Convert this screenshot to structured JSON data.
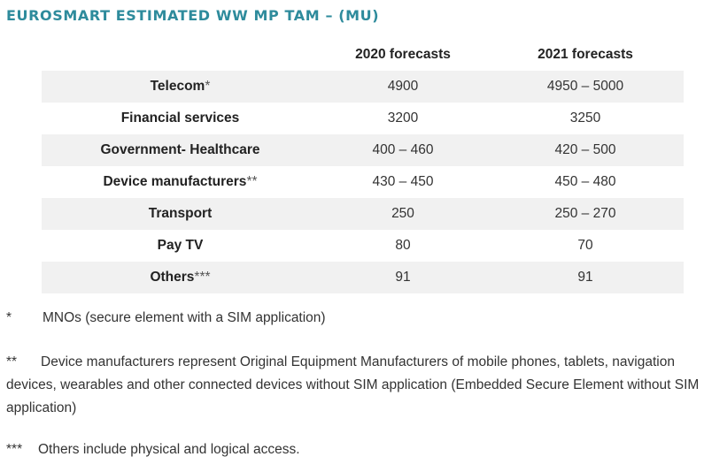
{
  "title": "EUROSMART ESTIMATED WW MP TAM – (MU)",
  "table": {
    "columns": [
      "",
      "2020 forecasts",
      "2021 forecasts"
    ],
    "rows": [
      {
        "segment": "Telecom",
        "mark": "*",
        "y2020": "4900",
        "y2021": "4950 – 5000"
      },
      {
        "segment": "Financial services",
        "mark": "",
        "y2020": "3200",
        "y2021": "3250"
      },
      {
        "segment": "Government- Healthcare",
        "mark": "",
        "y2020": "400 – 460",
        "y2021": "420 – 500"
      },
      {
        "segment": "Device manufacturers",
        "mark": "**",
        "y2020": "430 – 450",
        "y2021": "450 – 480"
      },
      {
        "segment": "Transport",
        "mark": "",
        "y2020": "250",
        "y2021": "250 – 270"
      },
      {
        "segment": "Pay TV",
        "mark": "",
        "y2020": "80",
        "y2021": "70"
      },
      {
        "segment": "Others",
        "mark": "***",
        "y2020": "91",
        "y2021": "91"
      }
    ]
  },
  "footnotes": [
    {
      "symbol": "*",
      "text": "MNOs (secure element with a SIM application)"
    },
    {
      "symbol": "**",
      "text": "Device manufacturers represent Original Equipment Manufacturers of mobile phones, tablets, navigation devices, wearables and other connected devices without SIM application (Embedded Secure Element without SIM application)"
    },
    {
      "symbol": "***",
      "text": "Others include physical and logical access."
    }
  ]
}
